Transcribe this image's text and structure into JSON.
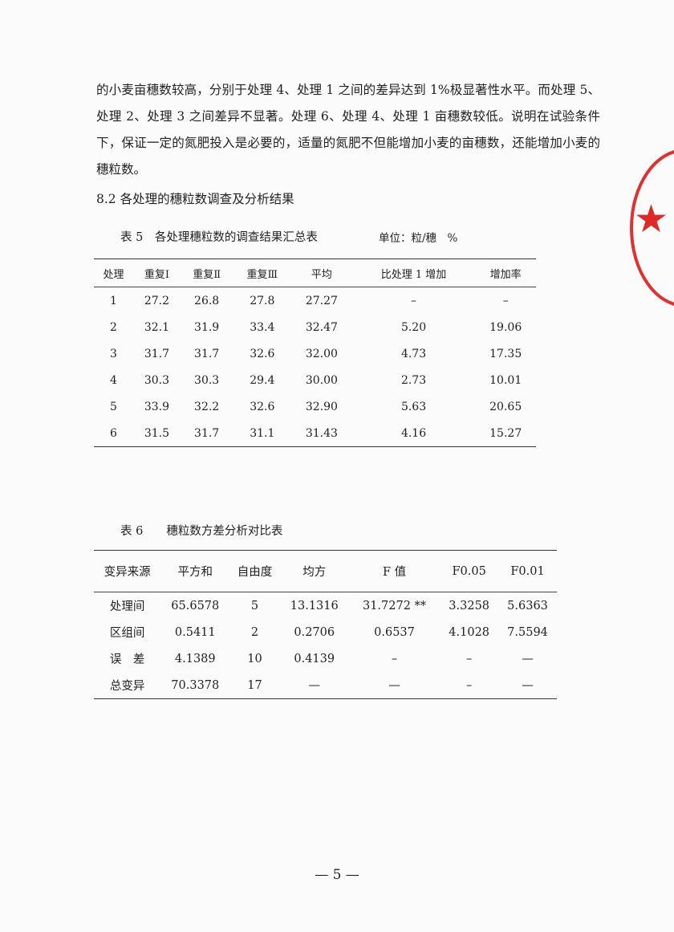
{
  "paragraph": "的小麦亩穗数较高，分别于处理 4、处理 1 之间的差异达到 1%极显著性水平。而处理 5、处理 2、处理 3 之间差异不显著。处理 6、处理 4、处理 1 亩穗数较低。说明在试验条件下，保证一定的氮肥投入是必要的，适量的氮肥不但能增加小麦的亩穗数，还能增加小麦的穗粒数。",
  "heading": "8.2 各处理的穗粒数调查及分析结果",
  "table5": {
    "caption": "表 5　各处理穗粒数的调查结果汇总表",
    "unit": "单位：粒/穗　%",
    "headers": [
      "处理",
      "重复Ⅰ",
      "重复Ⅱ",
      "重复Ⅲ",
      "平均",
      "比处理 1 增加",
      "增加率"
    ],
    "rows": [
      [
        "1",
        "27.2",
        "26.8",
        "27.8",
        "27.27",
        "–",
        "–"
      ],
      [
        "2",
        "32.1",
        "31.9",
        "33.4",
        "32.47",
        "5.20",
        "19.06"
      ],
      [
        "3",
        "31.7",
        "31.7",
        "32.6",
        "32.00",
        "4.73",
        "17.35"
      ],
      [
        "4",
        "30.3",
        "30.3",
        "29.4",
        "30.00",
        "2.73",
        "10.01"
      ],
      [
        "5",
        "33.9",
        "32.2",
        "32.6",
        "32.90",
        "5.63",
        "20.65"
      ],
      [
        "6",
        "31.5",
        "31.7",
        "31.1",
        "31.43",
        "4.16",
        "15.27"
      ]
    ]
  },
  "table6": {
    "caption": "表 6　　穗粒数方差分析对比表",
    "headers": [
      "变异来源",
      "平方和",
      "自由度",
      "均方",
      "F 值",
      "F0.05",
      "F0.01"
    ],
    "rows": [
      [
        "处理间",
        "65.6578",
        "5",
        "13.1316",
        "31.7272 **",
        "3.3258",
        "5.6363"
      ],
      [
        "区组间",
        "0.5411",
        "2",
        "0.2706",
        "0.6537",
        "4.1028",
        "7.5594"
      ],
      [
        "误　差",
        "4.1389",
        "10",
        "0.4139",
        "–",
        "–",
        "—"
      ],
      [
        "总变异",
        "70.3378",
        "17",
        "—",
        "—",
        "–",
        "—"
      ]
    ]
  },
  "page_number": "— 5 —",
  "stamp_color": "#e03030"
}
